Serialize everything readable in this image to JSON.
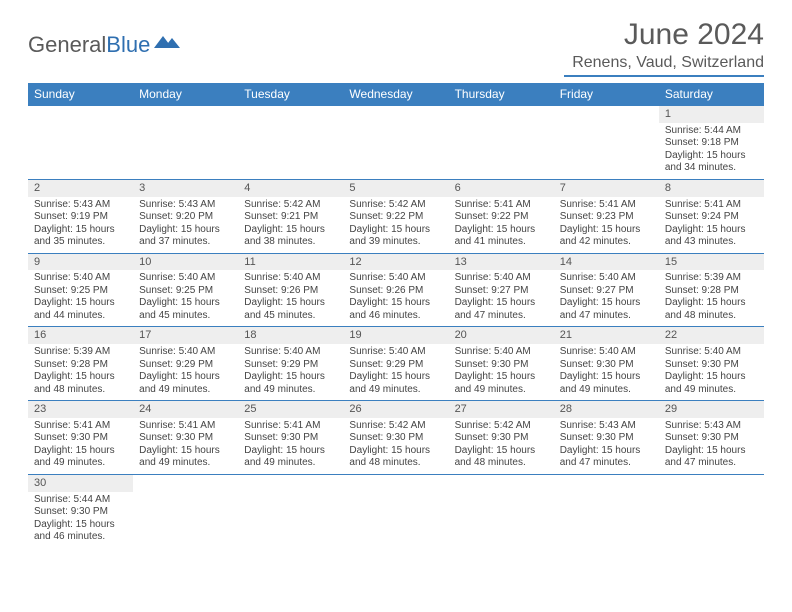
{
  "brand": {
    "part1": "General",
    "part2": "Blue"
  },
  "title": "June 2024",
  "location": "Renens, Vaud, Switzerland",
  "colors": {
    "header_bg": "#3b7fbf",
    "header_fg": "#ffffff",
    "daynum_bg": "#eeeeee",
    "rule": "#3b7fbf",
    "text": "#444444",
    "title_text": "#5a5a5a"
  },
  "day_headers": [
    "Sunday",
    "Monday",
    "Tuesday",
    "Wednesday",
    "Thursday",
    "Friday",
    "Saturday"
  ],
  "weeks": [
    [
      null,
      null,
      null,
      null,
      null,
      null,
      {
        "n": "1",
        "sr": "5:44 AM",
        "ss": "9:18 PM",
        "dl": "15 hours and 34 minutes."
      }
    ],
    [
      {
        "n": "2",
        "sr": "5:43 AM",
        "ss": "9:19 PM",
        "dl": "15 hours and 35 minutes."
      },
      {
        "n": "3",
        "sr": "5:43 AM",
        "ss": "9:20 PM",
        "dl": "15 hours and 37 minutes."
      },
      {
        "n": "4",
        "sr": "5:42 AM",
        "ss": "9:21 PM",
        "dl": "15 hours and 38 minutes."
      },
      {
        "n": "5",
        "sr": "5:42 AM",
        "ss": "9:22 PM",
        "dl": "15 hours and 39 minutes."
      },
      {
        "n": "6",
        "sr": "5:41 AM",
        "ss": "9:22 PM",
        "dl": "15 hours and 41 minutes."
      },
      {
        "n": "7",
        "sr": "5:41 AM",
        "ss": "9:23 PM",
        "dl": "15 hours and 42 minutes."
      },
      {
        "n": "8",
        "sr": "5:41 AM",
        "ss": "9:24 PM",
        "dl": "15 hours and 43 minutes."
      }
    ],
    [
      {
        "n": "9",
        "sr": "5:40 AM",
        "ss": "9:25 PM",
        "dl": "15 hours and 44 minutes."
      },
      {
        "n": "10",
        "sr": "5:40 AM",
        "ss": "9:25 PM",
        "dl": "15 hours and 45 minutes."
      },
      {
        "n": "11",
        "sr": "5:40 AM",
        "ss": "9:26 PM",
        "dl": "15 hours and 45 minutes."
      },
      {
        "n": "12",
        "sr": "5:40 AM",
        "ss": "9:26 PM",
        "dl": "15 hours and 46 minutes."
      },
      {
        "n": "13",
        "sr": "5:40 AM",
        "ss": "9:27 PM",
        "dl": "15 hours and 47 minutes."
      },
      {
        "n": "14",
        "sr": "5:40 AM",
        "ss": "9:27 PM",
        "dl": "15 hours and 47 minutes."
      },
      {
        "n": "15",
        "sr": "5:39 AM",
        "ss": "9:28 PM",
        "dl": "15 hours and 48 minutes."
      }
    ],
    [
      {
        "n": "16",
        "sr": "5:39 AM",
        "ss": "9:28 PM",
        "dl": "15 hours and 48 minutes."
      },
      {
        "n": "17",
        "sr": "5:40 AM",
        "ss": "9:29 PM",
        "dl": "15 hours and 49 minutes."
      },
      {
        "n": "18",
        "sr": "5:40 AM",
        "ss": "9:29 PM",
        "dl": "15 hours and 49 minutes."
      },
      {
        "n": "19",
        "sr": "5:40 AM",
        "ss": "9:29 PM",
        "dl": "15 hours and 49 minutes."
      },
      {
        "n": "20",
        "sr": "5:40 AM",
        "ss": "9:30 PM",
        "dl": "15 hours and 49 minutes."
      },
      {
        "n": "21",
        "sr": "5:40 AM",
        "ss": "9:30 PM",
        "dl": "15 hours and 49 minutes."
      },
      {
        "n": "22",
        "sr": "5:40 AM",
        "ss": "9:30 PM",
        "dl": "15 hours and 49 minutes."
      }
    ],
    [
      {
        "n": "23",
        "sr": "5:41 AM",
        "ss": "9:30 PM",
        "dl": "15 hours and 49 minutes."
      },
      {
        "n": "24",
        "sr": "5:41 AM",
        "ss": "9:30 PM",
        "dl": "15 hours and 49 minutes."
      },
      {
        "n": "25",
        "sr": "5:41 AM",
        "ss": "9:30 PM",
        "dl": "15 hours and 49 minutes."
      },
      {
        "n": "26",
        "sr": "5:42 AM",
        "ss": "9:30 PM",
        "dl": "15 hours and 48 minutes."
      },
      {
        "n": "27",
        "sr": "5:42 AM",
        "ss": "9:30 PM",
        "dl": "15 hours and 48 minutes."
      },
      {
        "n": "28",
        "sr": "5:43 AM",
        "ss": "9:30 PM",
        "dl": "15 hours and 47 minutes."
      },
      {
        "n": "29",
        "sr": "5:43 AM",
        "ss": "9:30 PM",
        "dl": "15 hours and 47 minutes."
      }
    ],
    [
      {
        "n": "30",
        "sr": "5:44 AM",
        "ss": "9:30 PM",
        "dl": "15 hours and 46 minutes."
      },
      null,
      null,
      null,
      null,
      null,
      null
    ]
  ],
  "labels": {
    "sunrise": "Sunrise:",
    "sunset": "Sunset:",
    "daylight": "Daylight:"
  }
}
